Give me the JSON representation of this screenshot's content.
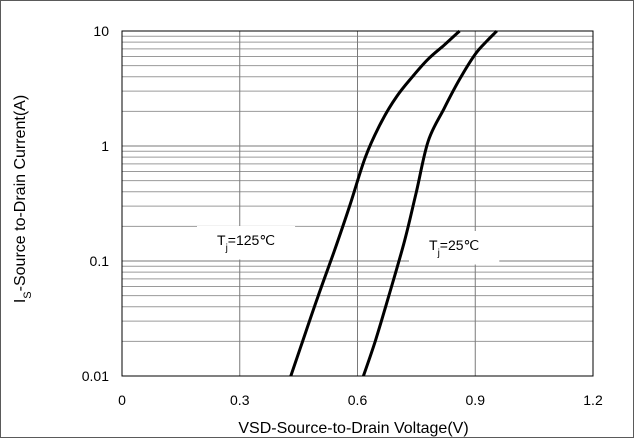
{
  "chart_data": {
    "type": "line",
    "title": "",
    "xlabel": "VSD-Source-to-Drain Voltage(V)",
    "ylabel_main": "I",
    "ylabel_sub": "S",
    "ylabel_rest": "-Source  to-Drain Current(A)",
    "xlim": [
      0,
      1.2
    ],
    "ylim": [
      0.01,
      10
    ],
    "y_scale": "log",
    "grid": true,
    "x_ticks": [
      0,
      0.3,
      0.6,
      0.9,
      1.2
    ],
    "x_tick_labels": [
      "0",
      "0.3",
      "0.6",
      "0.9",
      "1.2"
    ],
    "y_ticks": [
      0.01,
      0.1,
      1,
      10
    ],
    "y_tick_labels": [
      "0.01",
      "0.1",
      "1",
      "10"
    ],
    "series": [
      {
        "label_main": "T",
        "label_sub": "j",
        "label_rest": "=125℃",
        "points": [
          [
            0.43,
            0.01
          ],
          [
            0.46,
            0.02
          ],
          [
            0.5,
            0.05
          ],
          [
            0.54,
            0.12
          ],
          [
            0.58,
            0.3
          ],
          [
            0.62,
            0.8
          ],
          [
            0.66,
            1.6
          ],
          [
            0.7,
            2.7
          ],
          [
            0.74,
            4.0
          ],
          [
            0.78,
            5.7
          ],
          [
            0.82,
            7.5
          ],
          [
            0.86,
            10
          ]
        ]
      },
      {
        "label_main": "T",
        "label_sub": "j",
        "label_rest": "=25℃",
        "points": [
          [
            0.615,
            0.01
          ],
          [
            0.645,
            0.02
          ],
          [
            0.68,
            0.05
          ],
          [
            0.72,
            0.15
          ],
          [
            0.75,
            0.4
          ],
          [
            0.78,
            1.1
          ],
          [
            0.82,
            2.1
          ],
          [
            0.86,
            3.8
          ],
          [
            0.9,
            6.3
          ],
          [
            0.93,
            8.2
          ],
          [
            0.955,
            10
          ]
        ]
      }
    ]
  }
}
